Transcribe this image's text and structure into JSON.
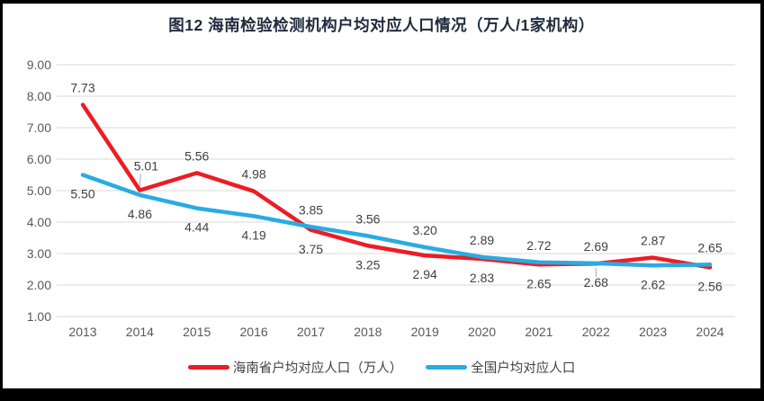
{
  "figure": {
    "title": "图12  海南检验检测机构户均对应人口情况（万人/1家机构）"
  },
  "chart_data": {
    "type": "line",
    "title": "图12  海南检验检测机构户均对应人口情况（万人/1家机构）",
    "categories": [
      "2013",
      "2014",
      "2015",
      "2016",
      "2017",
      "2018",
      "2019",
      "2020",
      "2021",
      "2022",
      "2023",
      "2024"
    ],
    "series": [
      {
        "name": "海南省户均对应人口（万人）",
        "color": "#ED1C24",
        "values": [
          7.73,
          5.01,
          5.56,
          4.98,
          3.75,
          3.25,
          2.94,
          2.83,
          2.65,
          2.68,
          2.87,
          2.56
        ],
        "label_side": [
          "above",
          "above",
          "above",
          "above",
          "below",
          "below",
          "below",
          "below",
          "below",
          "below",
          "above",
          "below"
        ]
      },
      {
        "name": "全国户均对应人口",
        "color": "#2AABE2",
        "values": [
          5.5,
          4.86,
          4.44,
          4.19,
          3.85,
          3.56,
          3.2,
          2.89,
          2.72,
          2.69,
          2.62,
          2.65
        ],
        "label_side": [
          "below",
          "below",
          "below",
          "below",
          "above",
          "above",
          "above",
          "above",
          "above",
          "above",
          "below",
          "above"
        ]
      }
    ],
    "ylim": [
      1.0,
      9.0
    ],
    "ytick_step": 1.0,
    "yticks": [
      "9.00",
      "8.00",
      "7.00",
      "6.00",
      "5.00",
      "4.00",
      "3.00",
      "2.00",
      "1.00"
    ],
    "xlabel": "",
    "ylabel": "",
    "grid": "horizontal",
    "grid_color": "#D9D9D9",
    "leader_color": "#A6A6A6",
    "legend_position": "bottom",
    "leader_lines": [
      {
        "series": 0,
        "index": 1,
        "dx": 7,
        "dy": -8
      },
      {
        "series": 0,
        "index": 9,
        "dx": 0,
        "dy": 0
      }
    ]
  }
}
